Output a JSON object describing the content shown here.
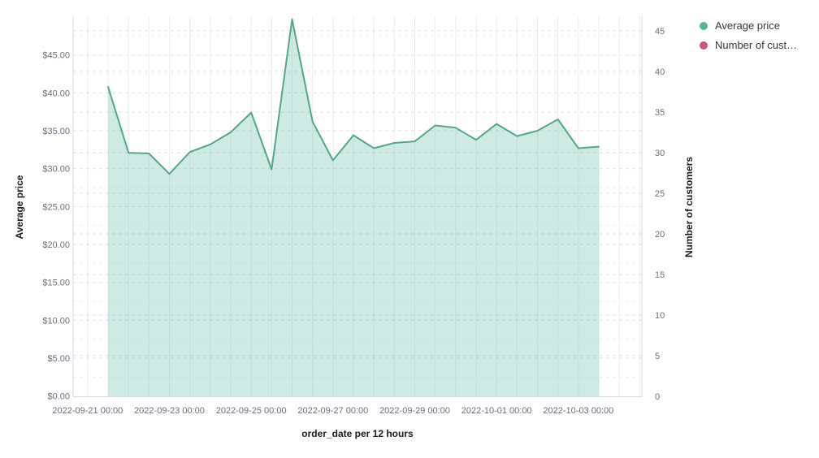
{
  "chart_data": {
    "type": "area",
    "title": "",
    "xlabel": "order_date per 12 hours",
    "ylabel_left": "Average price",
    "ylabel_right": "Number of customers",
    "x": [
      "2022-09-21 12:00",
      "2022-09-22 00:00",
      "2022-09-22 12:00",
      "2022-09-23 00:00",
      "2022-09-23 12:00",
      "2022-09-24 00:00",
      "2022-09-24 12:00",
      "2022-09-25 00:00",
      "2022-09-25 12:00",
      "2022-09-26 00:00",
      "2022-09-26 12:00",
      "2022-09-27 00:00",
      "2022-09-27 12:00",
      "2022-09-28 00:00",
      "2022-09-28 12:00",
      "2022-09-29 00:00",
      "2022-09-29 12:00",
      "2022-09-30 00:00",
      "2022-09-30 12:00",
      "2022-10-01 00:00",
      "2022-10-01 12:00",
      "2022-10-02 00:00",
      "2022-10-02 12:00",
      "2022-10-03 00:00",
      "2022-10-03 12:00"
    ],
    "series": [
      {
        "name": "Average price",
        "axis": "left",
        "color": "#54b399",
        "line_color": "#54a78c",
        "fill_opacity": 0.28,
        "visible": true,
        "values": [
          40.8,
          32.1,
          32.0,
          29.3,
          32.2,
          33.2,
          34.8,
          37.4,
          29.9,
          49.7,
          36.2,
          31.1,
          34.4,
          32.7,
          33.4,
          33.6,
          35.7,
          35.4,
          33.8,
          35.9,
          34.3,
          35.0,
          36.5,
          32.7,
          32.9
        ]
      },
      {
        "name": "Number of customers",
        "axis": "right",
        "color": "#c75779",
        "visible": false,
        "values": []
      }
    ],
    "x_tick_labels": [
      "2022-09-21 00:00",
      "2022-09-23 00:00",
      "2022-09-25 00:00",
      "2022-09-27 00:00",
      "2022-09-29 00:00",
      "2022-10-01 00:00",
      "2022-10-03 00:00"
    ],
    "y_left_tick_values": [
      0,
      5,
      10,
      15,
      20,
      25,
      30,
      35,
      40,
      45
    ],
    "y_left_tick_labels": [
      "$0.00",
      "$5.00",
      "$10.00",
      "$15.00",
      "$20.00",
      "$25.00",
      "$30.00",
      "$35.00",
      "$40.00",
      "$45.00"
    ],
    "y_right_tick_values": [
      0,
      5,
      10,
      15,
      20,
      25,
      30,
      35,
      40,
      45
    ],
    "y_right_tick_labels": [
      "0",
      "5",
      "10",
      "15",
      "20",
      "25",
      "30",
      "35",
      "40",
      "45"
    ],
    "ylim_left": [
      0,
      50
    ],
    "ylim_right": [
      0,
      47
    ],
    "grid": {
      "vertical": "solid, every 12 hours",
      "horizontal": "dashed, both axes' major steps + left minor $2.50 steps"
    },
    "legend_position": "top-right"
  },
  "legend": {
    "items": [
      {
        "label": "Average price",
        "color": "#54b399"
      },
      {
        "label": "Number of cust…",
        "color": "#c75779"
      }
    ]
  },
  "axis_titles": {
    "x": "order_date per 12 hours",
    "left": "Average price",
    "right": "Number of customers"
  }
}
